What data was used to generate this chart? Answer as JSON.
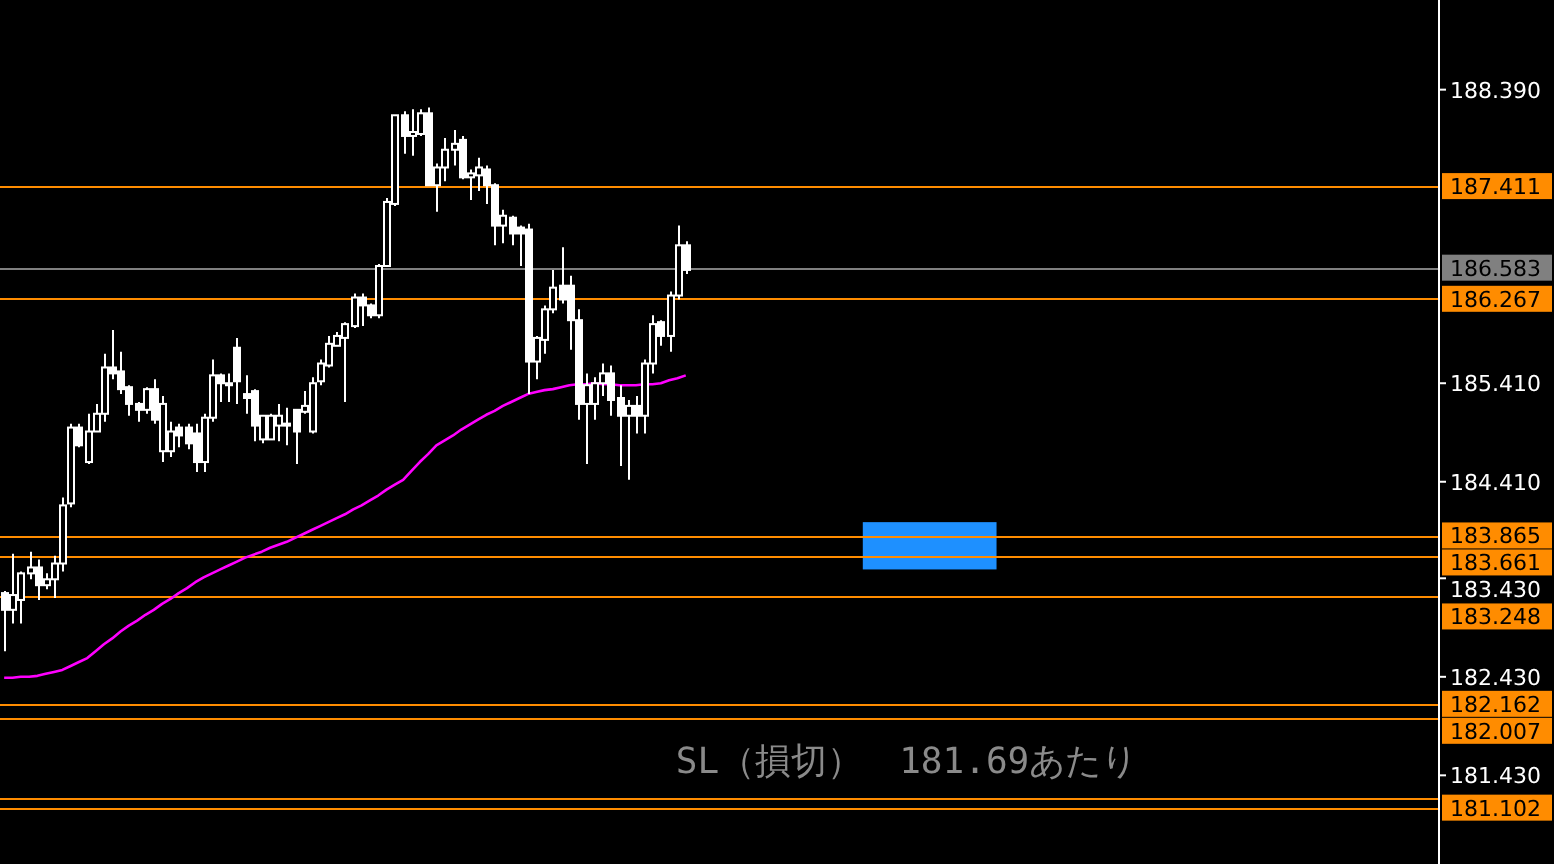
{
  "chart_data": {
    "type": "candlestick",
    "color": "#ffffff",
    "categories": [
      null,
      null,
      null,
      null,
      null,
      null,
      null,
      null,
      null,
      null,
      null,
      null,
      null,
      null,
      null,
      null,
      null,
      null,
      null,
      null,
      null,
      null,
      null,
      null,
      null,
      null,
      null,
      null,
      null,
      null,
      null,
      null,
      null,
      null,
      null,
      null,
      null,
      null,
      null,
      null,
      null,
      null,
      null,
      null,
      null,
      null,
      null,
      null,
      null,
      null,
      null,
      null,
      null,
      null,
      null,
      null,
      null,
      null,
      null,
      null,
      null,
      null,
      null,
      null,
      null,
      null,
      null,
      null,
      null,
      null,
      null,
      null,
      null,
      null,
      null,
      null,
      null,
      null,
      null,
      null,
      null,
      null,
      null,
      null,
      null,
      null,
      null,
      null,
      null,
      null,
      null,
      null,
      null,
      null,
      null,
      null,
      null,
      null,
      null,
      null,
      null,
      null,
      null,
      null,
      null,
      null,
      null,
      null,
      null,
      null,
      null,
      null,
      null,
      null,
      null,
      null,
      null,
      null,
      null,
      null,
      null,
      null,
      null,
      null,
      null,
      null,
      null,
      null,
      null,
      null,
      null,
      null,
      null,
      null,
      null,
      null,
      null,
      null,
      null,
      null,
      null,
      null,
      null,
      null,
      null,
      null,
      null,
      null,
      null,
      null,
      null,
      null,
      null,
      null,
      null,
      null,
      null,
      null,
      null,
      null,
      null,
      null,
      null,
      null,
      null,
      null,
      null,
      null,
      null,
      null,
      null,
      null,
      null
    ],
    "ohlc": [
      [
        183.28,
        183.3,
        182.69,
        183.11
      ],
      [
        183.11,
        183.68,
        182.97,
        183.26
      ],
      [
        183.21,
        183.5,
        182.97,
        183.48
      ],
      [
        183.48,
        183.7,
        183.42,
        183.54
      ],
      [
        183.54,
        183.62,
        183.21,
        183.36
      ],
      [
        183.36,
        183.48,
        183.32,
        183.42
      ],
      [
        183.42,
        183.66,
        183.23,
        183.58
      ],
      [
        183.58,
        184.25,
        183.5,
        184.17
      ],
      [
        184.19,
        185.0,
        184.15,
        184.96
      ],
      [
        184.96,
        185.0,
        184.76,
        184.78
      ],
      [
        184.61,
        185.1,
        184.59,
        184.92
      ],
      [
        184.92,
        185.2,
        184.92,
        185.1
      ],
      [
        185.1,
        185.71,
        185.02,
        185.57
      ],
      [
        185.57,
        185.95,
        185.45,
        185.51
      ],
      [
        185.53,
        185.73,
        185.3,
        185.35
      ],
      [
        185.37,
        185.39,
        185.08,
        185.2
      ],
      [
        185.2,
        185.22,
        185.02,
        185.14
      ],
      [
        185.14,
        185.37,
        185.1,
        185.35
      ],
      [
        185.35,
        185.45,
        185.0,
        185.04
      ],
      [
        184.72,
        185.28,
        184.61,
        185.2
      ],
      [
        184.72,
        185.02,
        184.66,
        184.92
      ],
      [
        184.96,
        185.0,
        184.76,
        184.88
      ],
      [
        184.96,
        185.0,
        184.74,
        184.8
      ],
      [
        184.9,
        185.0,
        184.51,
        184.61
      ],
      [
        184.61,
        185.1,
        184.51,
        185.06
      ],
      [
        185.06,
        185.65,
        185.02,
        185.49
      ],
      [
        185.49,
        185.51,
        185.22,
        185.41
      ],
      [
        185.41,
        185.51,
        185.22,
        185.39
      ],
      [
        185.77,
        185.87,
        185.2,
        185.43
      ],
      [
        185.3,
        185.49,
        185.1,
        185.26
      ],
      [
        185.33,
        185.35,
        184.82,
        184.98
      ],
      [
        184.84,
        185.08,
        184.8,
        185.08
      ],
      [
        184.84,
        185.1,
        184.84,
        185.08
      ],
      [
        184.98,
        185.2,
        184.82,
        185.08
      ],
      [
        185.0,
        185.16,
        184.78,
        184.98
      ],
      [
        185.14,
        185.14,
        184.59,
        184.92
      ],
      [
        185.12,
        185.33,
        185.1,
        185.18
      ],
      [
        184.92,
        185.47,
        184.9,
        185.41
      ],
      [
        185.43,
        185.65,
        185.39,
        185.61
      ],
      [
        185.59,
        185.89,
        185.57,
        185.81
      ],
      [
        185.79,
        185.93,
        185.79,
        185.89
      ],
      [
        185.87,
        186.03,
        185.22,
        186.01
      ],
      [
        185.99,
        186.32,
        185.97,
        186.28
      ],
      [
        186.28,
        186.32,
        185.99,
        186.2
      ],
      [
        186.2,
        186.22,
        186.07,
        186.1
      ],
      [
        186.1,
        186.62,
        186.07,
        186.6
      ],
      [
        186.6,
        187.29,
        186.6,
        187.25
      ],
      [
        187.23,
        188.13,
        187.21,
        188.13
      ],
      [
        188.13,
        188.17,
        187.74,
        187.92
      ],
      [
        187.92,
        188.19,
        187.72,
        187.96
      ],
      [
        187.94,
        188.19,
        187.92,
        188.15
      ],
      [
        188.15,
        188.21,
        187.42,
        187.42
      ],
      [
        187.42,
        187.64,
        187.15,
        187.6
      ],
      [
        187.6,
        187.9,
        187.46,
        187.78
      ],
      [
        187.78,
        187.98,
        187.62,
        187.84
      ],
      [
        187.88,
        187.92,
        187.48,
        187.5
      ],
      [
        187.5,
        187.58,
        187.27,
        187.54
      ],
      [
        187.52,
        187.7,
        187.36,
        187.6
      ],
      [
        187.58,
        187.62,
        187.23,
        187.42
      ],
      [
        187.42,
        187.44,
        186.81,
        187.01
      ],
      [
        187.01,
        187.17,
        186.83,
        187.11
      ],
      [
        187.09,
        187.11,
        186.81,
        186.93
      ],
      [
        186.99,
        187.01,
        186.6,
        186.93
      ],
      [
        186.97,
        187.03,
        185.3,
        185.63
      ],
      [
        185.63,
        185.89,
        185.45,
        185.87
      ],
      [
        185.85,
        186.2,
        185.71,
        186.16
      ],
      [
        186.16,
        186.56,
        186.12,
        186.38
      ],
      [
        186.4,
        186.79,
        186.22,
        186.26
      ],
      [
        186.4,
        186.5,
        185.75,
        186.05
      ],
      [
        186.05,
        186.16,
        185.04,
        185.2
      ],
      [
        185.2,
        185.51,
        184.59,
        185.39
      ],
      [
        185.2,
        185.47,
        185.04,
        185.41
      ],
      [
        185.41,
        185.61,
        185.28,
        185.51
      ],
      [
        185.51,
        185.59,
        185.08,
        185.24
      ],
      [
        185.26,
        185.39,
        184.57,
        185.08
      ],
      [
        185.08,
        185.24,
        184.43,
        185.18
      ],
      [
        185.18,
        185.28,
        184.9,
        185.08
      ],
      [
        185.08,
        185.65,
        184.9,
        185.61
      ],
      [
        185.61,
        186.1,
        185.51,
        186.01
      ],
      [
        186.03,
        186.05,
        185.79,
        185.89
      ],
      [
        185.89,
        186.34,
        185.73,
        186.3
      ],
      [
        186.3,
        187.01,
        186.26,
        186.81
      ],
      [
        186.81,
        186.85,
        186.52,
        186.56
      ],
      null,
      null,
      null,
      null,
      null,
      null,
      null,
      null,
      null,
      null,
      null,
      null,
      null,
      null,
      null,
      null,
      null,
      null,
      null,
      null,
      null,
      null,
      null,
      null,
      null,
      null,
      null,
      null,
      null,
      null,
      null,
      null,
      null,
      null,
      null,
      null,
      null,
      null,
      null,
      null,
      null,
      null,
      null,
      null,
      null,
      null,
      null,
      null,
      null,
      null,
      null,
      null,
      null,
      null,
      null,
      null,
      null,
      null,
      null,
      null,
      null,
      null,
      null,
      null,
      null,
      null,
      null,
      null,
      null,
      null,
      null,
      null,
      null,
      null,
      null,
      null,
      null,
      null,
      null,
      null,
      null,
      null,
      null,
      null,
      null,
      null,
      null,
      null,
      null,
      null
    ],
    "series": [
      {
        "type": "line",
        "color": "#ff00ff",
        "values": [
          182.42,
          182.42,
          182.43,
          182.43,
          182.44,
          182.46,
          182.48,
          182.5,
          182.54,
          182.58,
          182.62,
          182.69,
          182.76,
          182.82,
          182.89,
          182.95,
          183.0,
          183.06,
          183.11,
          183.17,
          183.22,
          183.28,
          183.33,
          183.39,
          183.44,
          183.48,
          183.52,
          183.56,
          183.6,
          183.64,
          183.67,
          183.7,
          183.74,
          183.77,
          183.8,
          183.84,
          183.88,
          183.92,
          183.96,
          184.0,
          184.04,
          184.08,
          184.13,
          184.17,
          184.22,
          184.27,
          184.33,
          184.38,
          184.43,
          184.52,
          184.61,
          184.69,
          184.78,
          184.83,
          184.88,
          184.94,
          184.99,
          185.04,
          185.09,
          185.13,
          185.18,
          185.22,
          185.26,
          185.3,
          185.32,
          185.34,
          185.35,
          185.37,
          185.39,
          185.4,
          185.4,
          185.41,
          185.4,
          185.4,
          185.39,
          185.39,
          185.39,
          185.4,
          185.4,
          185.41,
          185.44,
          185.46,
          185.49,
          null,
          null,
          null,
          null,
          null,
          null,
          null,
          null,
          null,
          null,
          null,
          null,
          null,
          null,
          null,
          null,
          null,
          null,
          null,
          null,
          null,
          null,
          null,
          null,
          null,
          null,
          null,
          null,
          null,
          null,
          null,
          null,
          null,
          null,
          null,
          null,
          null,
          null,
          null,
          null,
          null,
          null,
          null,
          null,
          null,
          null,
          null,
          null,
          null,
          null,
          null,
          null,
          null,
          null,
          null,
          null,
          null,
          null,
          null,
          null,
          null,
          null,
          null,
          null,
          null,
          null,
          null,
          null,
          null,
          null,
          null,
          null,
          null,
          null,
          null,
          null,
          null,
          null,
          null,
          null,
          null,
          null,
          null,
          null,
          null,
          null,
          null,
          null,
          null,
          null
        ]
      }
    ],
    "ylim": [
      180.53,
      189.3
    ],
    "yticks": [
      {
        "value": 188.39,
        "label": "188.390"
      },
      {
        "value": 185.41,
        "label": "185.410"
      },
      {
        "value": 184.41,
        "label": "184.410"
      },
      {
        "value": 183.43,
        "label": "183.430"
      },
      {
        "value": 182.43,
        "label": "182.430"
      },
      {
        "value": 181.43,
        "label": "181.430"
      }
    ],
    "ref_lines": [
      {
        "axis": "y",
        "value": 187.411,
        "label": "187.411",
        "color": "#ff8c00"
      },
      {
        "axis": "y",
        "value": 186.583,
        "label": "186.583",
        "color": "#808080"
      },
      {
        "axis": "y",
        "value": 186.267,
        "label": "186.267",
        "color": "#ff8c00"
      },
      {
        "axis": "y",
        "value": 183.865,
        "label": "183.865",
        "color": "#ff8c00"
      },
      {
        "axis": "y",
        "value": 183.661,
        "label": "183.661",
        "color": "#ff8c00"
      },
      {
        "axis": "y",
        "value": 183.248,
        "label": "183.248",
        "color": "#ff8c00"
      },
      {
        "axis": "y",
        "value": 182.162,
        "label": "182.162",
        "color": "#ff8c00"
      },
      {
        "axis": "y",
        "value": 182.007,
        "label": "182.007",
        "color": "#ff8c00"
      },
      {
        "axis": "y",
        "value": 181.2,
        "label": null,
        "color": "#ff8c00"
      },
      {
        "axis": "y",
        "value": 181.102,
        "label": "181.102",
        "color": "#ff8c00"
      }
    ],
    "bands": [
      {
        "axis": "y",
        "from": 183.52,
        "to": 184.0,
        "color": "#1e90ff"
      }
    ],
    "annotations": [
      "SL（損切）　181.69あたり"
    ],
    "grid": false
  }
}
